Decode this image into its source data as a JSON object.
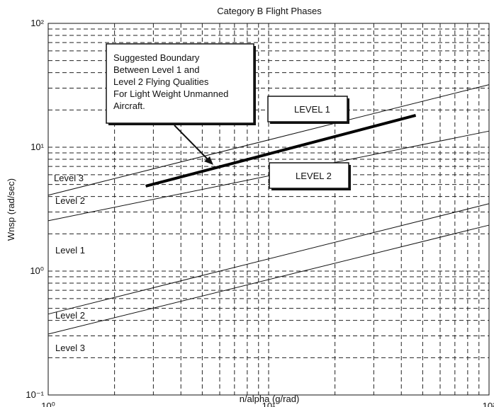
{
  "chart_data": {
    "type": "line",
    "title": "Category B Flight Phases",
    "x_label": "n/alpha   (g/rad)",
    "y_label": "Wnsp    (rad/sec)",
    "log_x": true,
    "log_y": true,
    "grid": true,
    "xlim": [
      1,
      100
    ],
    "ylim": [
      0.1,
      100
    ],
    "xticks": [
      {
        "value": 1,
        "label": "10⁰"
      },
      {
        "value": 10,
        "label": "10¹"
      },
      {
        "value": 100,
        "label": "10²"
      }
    ],
    "yticks": [
      {
        "value": 0.1,
        "label": "10⁻¹"
      },
      {
        "value": 1,
        "label": "10⁰"
      },
      {
        "value": 10,
        "label": "10¹"
      },
      {
        "value": 100,
        "label": "10²"
      }
    ],
    "x_minor_ticks": [
      2,
      3,
      4,
      5,
      6,
      7,
      8,
      9,
      20,
      30,
      40,
      50,
      60,
      70,
      80,
      90
    ],
    "y_minor_ticks": [
      0.2,
      0.3,
      0.4,
      0.5,
      0.6,
      0.7,
      0.8,
      0.9,
      2,
      3,
      4,
      5,
      6,
      7,
      8,
      9,
      20,
      30,
      40,
      50,
      60,
      70,
      80,
      90
    ],
    "series": [
      {
        "color": "#111111",
        "line_width": 1,
        "x": [
          1,
          100
        ],
        "values": [
          4.1,
          32
        ]
      },
      {
        "color": "#111111",
        "line_width": 1,
        "x": [
          1,
          100
        ],
        "values": [
          2.55,
          13.5
        ]
      },
      {
        "color": "#111111",
        "line_width": 1,
        "x": [
          1,
          100
        ],
        "values": [
          0.45,
          3.5
        ]
      },
      {
        "color": "#111111",
        "line_width": 1,
        "x": [
          1,
          100
        ],
        "values": [
          0.31,
          2.35
        ]
      },
      {
        "color": "#000000",
        "line_width": 4,
        "x": [
          2.77,
          46.5
        ],
        "values": [
          4.85,
          18.1
        ]
      }
    ],
    "region_labels": [
      "Level 3",
      "Level 2",
      "Level 1",
      "Level 2",
      "Level 3"
    ],
    "annotations": [
      {
        "lines": [
          "Suggested  Boundary",
          "Between Level 1 and",
          "Level 2 Flying Qualities",
          "For Light Weight Unmanned",
          "Aircraft."
        ]
      },
      {
        "lines": [
          "LEVEL 1"
        ]
      },
      {
        "lines": [
          "LEVEL 2"
        ]
      }
    ]
  }
}
